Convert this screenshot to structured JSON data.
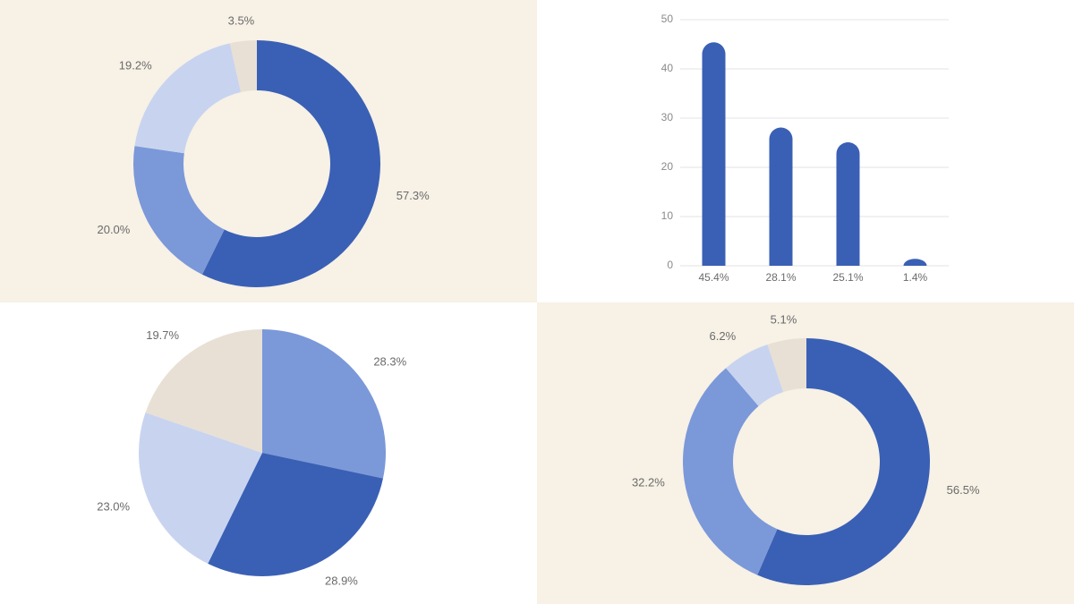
{
  "chart_data": [
    {
      "type": "donut",
      "background": "#f7f1e6",
      "values": [
        57.3,
        20.0,
        19.2,
        3.5
      ],
      "value_labels": [
        "57.3%",
        "20.0%",
        "19.2%",
        "3.5%"
      ],
      "colors": [
        "#3a60b5",
        "#7b98d9",
        "#c8d4ef",
        "#e8e0d4"
      ]
    },
    {
      "type": "bar",
      "background": "#ffffff",
      "color": "#3a60b5",
      "values": [
        45.4,
        28.1,
        25.1,
        1.4
      ],
      "value_labels": [
        "45.4%",
        "28.1%",
        "25.1%",
        "1.4%"
      ],
      "ylim": [
        0,
        50
      ],
      "yticks": [
        0,
        10,
        20,
        30,
        40,
        50
      ],
      "grid": true
    },
    {
      "type": "pie",
      "background": "#ffffff",
      "values": [
        28.3,
        28.9,
        23.0,
        19.7
      ],
      "value_labels": [
        "28.3%",
        "28.9%",
        "23.0%",
        "19.7%"
      ],
      "colors": [
        "#7b98d9",
        "#3a60b5",
        "#c8d4ef",
        "#e8e0d4"
      ]
    },
    {
      "type": "donut",
      "background": "#f7f1e6",
      "values": [
        56.5,
        32.2,
        6.2,
        5.1
      ],
      "value_labels": [
        "56.5%",
        "32.2%",
        "6.2%",
        "5.1%"
      ],
      "colors": [
        "#3a60b5",
        "#7b98d9",
        "#c8d4ef",
        "#e8e0d4"
      ]
    }
  ]
}
